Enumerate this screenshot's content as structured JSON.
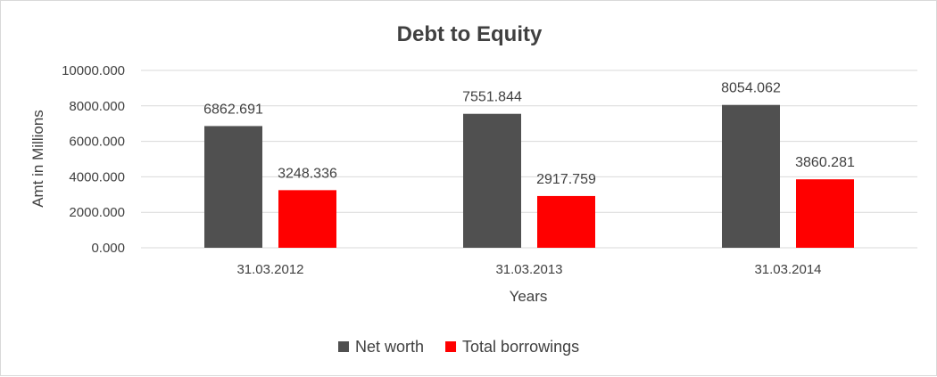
{
  "chart_data": {
    "type": "bar",
    "title": "Debt to Equity",
    "xlabel": "Years",
    "ylabel": "Amt in Millions",
    "categories": [
      "31.03.2012",
      "31.03.2013",
      "31.03.2014"
    ],
    "series": [
      {
        "name": "Net worth",
        "color": "#505050",
        "values": [
          6862.691,
          7551.844,
          8054.062
        ],
        "labels": [
          "6862.691",
          "7551.844",
          "8054.062"
        ]
      },
      {
        "name": "Total borrowings",
        "color": "#ff0000",
        "values": [
          3248.336,
          2917.759,
          3860.281
        ],
        "labels": [
          "3248.336",
          "2917.759",
          "3860.281"
        ]
      }
    ],
    "ylim": [
      0,
      10000
    ],
    "yticks": [
      0,
      2000,
      4000,
      6000,
      8000,
      10000
    ],
    "ytick_labels": [
      "0.000",
      "2000.000",
      "4000.000",
      "6000.000",
      "8000.000",
      "10000.000"
    ],
    "grid": true,
    "legend": "bottom"
  }
}
